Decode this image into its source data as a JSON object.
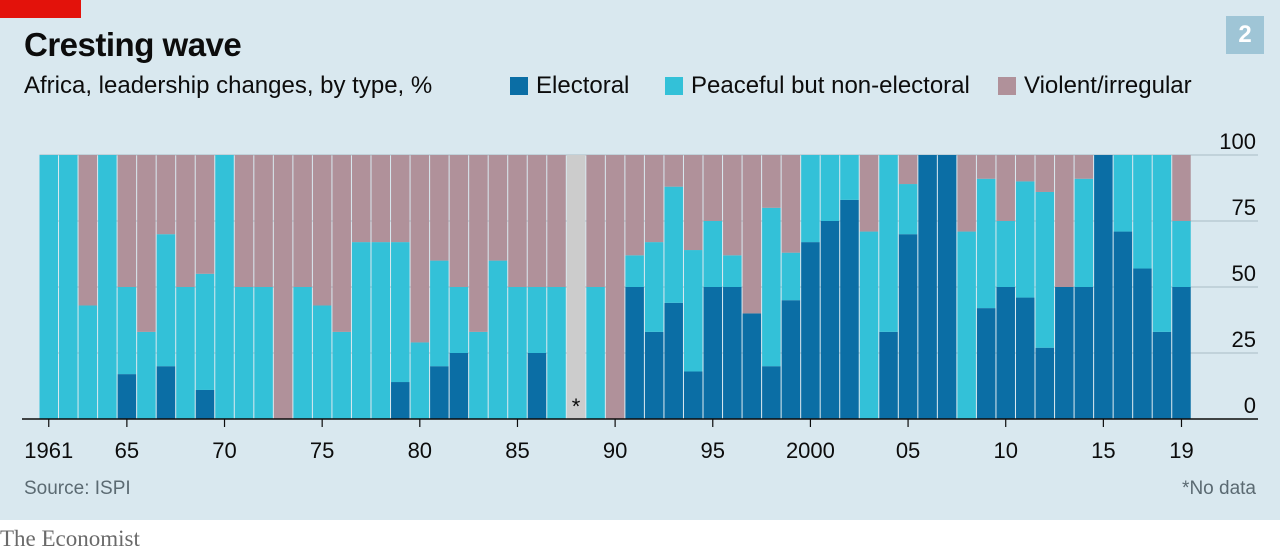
{
  "header": {
    "title": "Cresting wave",
    "subtitle": "Africa, leadership changes, by type, %",
    "badge": "2"
  },
  "legend": [
    {
      "label": "Electoral",
      "color": "#0b6ea5"
    },
    {
      "label": "Peaceful but non-electoral",
      "color": "#33c1d8"
    },
    {
      "label": "Violent/irregular",
      "color": "#b0919a"
    }
  ],
  "footer": {
    "source": "Source: ISPI",
    "footnote": "*No data",
    "brand": "The Economist"
  },
  "chart_data": {
    "type": "bar",
    "stacked": true,
    "years": [
      1961,
      1962,
      1963,
      1964,
      1965,
      1966,
      1967,
      1968,
      1969,
      1970,
      1971,
      1972,
      1973,
      1974,
      1975,
      1976,
      1977,
      1978,
      1979,
      1980,
      1981,
      1982,
      1983,
      1984,
      1985,
      1986,
      1987,
      1988,
      1989,
      1990,
      1991,
      1992,
      1993,
      1994,
      1995,
      1996,
      1997,
      1998,
      1999,
      2000,
      2001,
      2002,
      2003,
      2004,
      2005,
      2006,
      2007,
      2008,
      2009,
      2010,
      2011,
      2012,
      2013,
      2014,
      2015,
      2016,
      2017,
      2018,
      2019
    ],
    "x_tick_labels": [
      {
        "year": 1961,
        "label": "1961"
      },
      {
        "year": 1965,
        "label": "65"
      },
      {
        "year": 1970,
        "label": "70"
      },
      {
        "year": 1975,
        "label": "75"
      },
      {
        "year": 1980,
        "label": "80"
      },
      {
        "year": 1985,
        "label": "85"
      },
      {
        "year": 1990,
        "label": "90"
      },
      {
        "year": 1995,
        "label": "95"
      },
      {
        "year": 2000,
        "label": "2000"
      },
      {
        "year": 2005,
        "label": "05"
      },
      {
        "year": 2010,
        "label": "10"
      },
      {
        "year": 2015,
        "label": "15"
      },
      {
        "year": 2019,
        "label": "19"
      }
    ],
    "y_ticks": [
      0,
      25,
      50,
      75,
      100
    ],
    "ylim": [
      0,
      100
    ],
    "no_data_years": [
      1988
    ],
    "no_data_marker": "*",
    "series": [
      {
        "name": "Electoral",
        "color": "#0b6ea5",
        "values": [
          0,
          0,
          0,
          0,
          17,
          0,
          20,
          0,
          11,
          0,
          0,
          0,
          0,
          0,
          0,
          0,
          0,
          0,
          14,
          0,
          20,
          25,
          0,
          0,
          0,
          25,
          0,
          0,
          0,
          0,
          50,
          33,
          44,
          18,
          50,
          50,
          40,
          20,
          45,
          67,
          75,
          83,
          0,
          33,
          70,
          100,
          100,
          0,
          42,
          50,
          46,
          27,
          50,
          50,
          100,
          71,
          57,
          33,
          50
        ]
      },
      {
        "name": "Peaceful but non-electoral",
        "color": "#33c1d8",
        "values": [
          100,
          100,
          43,
          100,
          33,
          33,
          50,
          50,
          44,
          100,
          50,
          50,
          0,
          50,
          43,
          33,
          67,
          67,
          53,
          29,
          40,
          25,
          33,
          60,
          50,
          25,
          50,
          0,
          50,
          0,
          12,
          34,
          44,
          46,
          25,
          12,
          0,
          60,
          18,
          33,
          25,
          17,
          71,
          67,
          19,
          0,
          0,
          71,
          49,
          25,
          44,
          59,
          0,
          41,
          0,
          29,
          43,
          67,
          25
        ]
      },
      {
        "name": "Violent/irregular",
        "color": "#b0919a",
        "values": [
          0,
          0,
          57,
          0,
          50,
          67,
          30,
          50,
          45,
          0,
          50,
          50,
          100,
          50,
          57,
          67,
          33,
          33,
          33,
          71,
          40,
          50,
          67,
          40,
          50,
          50,
          50,
          0,
          50,
          100,
          38,
          33,
          12,
          36,
          25,
          38,
          60,
          20,
          37,
          0,
          0,
          0,
          29,
          0,
          11,
          0,
          0,
          29,
          9,
          25,
          10,
          14,
          50,
          9,
          0,
          0,
          0,
          0,
          25
        ]
      }
    ]
  }
}
